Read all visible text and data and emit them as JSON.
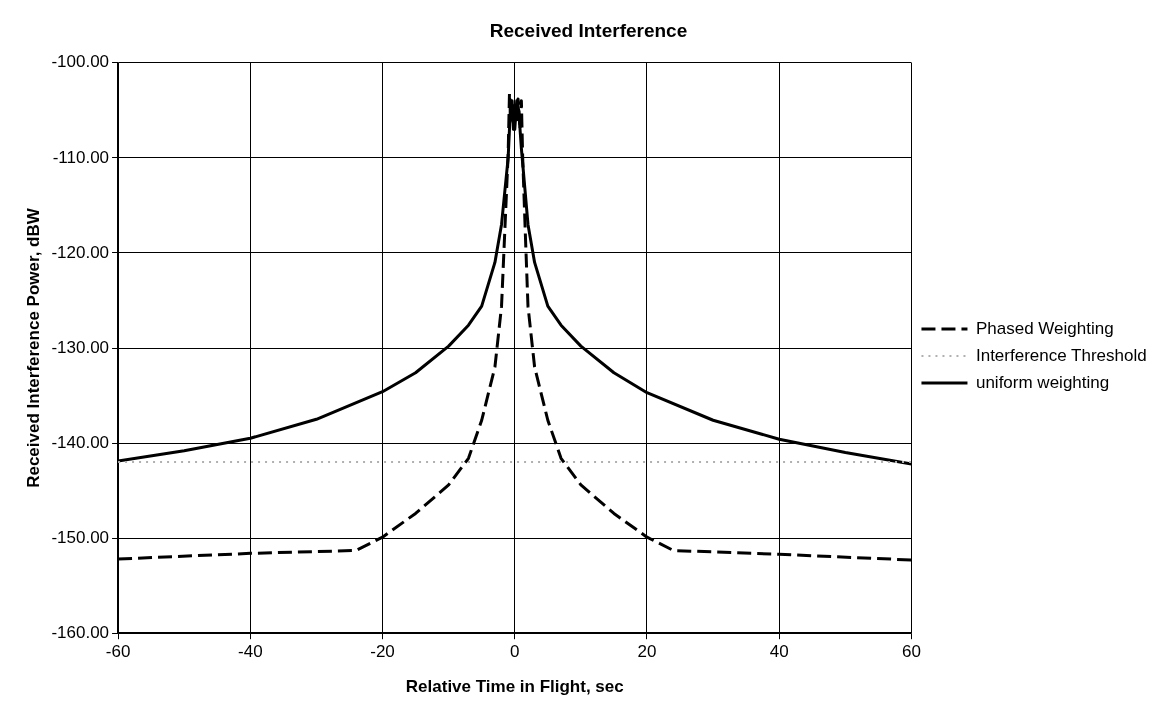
{
  "chart_data": {
    "type": "line",
    "title": "Received Interference",
    "xlabel": "Relative Time in Flight, sec",
    "ylabel": "Received Interference Power, dBW",
    "xlim": [
      -60,
      60
    ],
    "xticks": [
      -60,
      -40,
      -20,
      0,
      20,
      40,
      60
    ],
    "ylim": [
      -160,
      -100
    ],
    "yticks": [
      {
        "value": -160,
        "label": "-160.00"
      },
      {
        "value": -150,
        "label": "-150.00"
      },
      {
        "value": -140,
        "label": "-140.00"
      },
      {
        "value": -130,
        "label": "-130.00"
      },
      {
        "value": -120,
        "label": "-120.00"
      },
      {
        "value": -110,
        "label": "-110.00"
      },
      {
        "value": -100,
        "label": "-100.00"
      }
    ],
    "grid": true,
    "legend": "right",
    "marker": "none",
    "series": [
      {
        "name": "Phased Weighting",
        "color": "#000000",
        "line_style": "dashed",
        "x": [
          -60,
          -40,
          -24,
          -20,
          -15,
          -10,
          -7,
          -5,
          -3,
          -2,
          -1.5,
          -1,
          -0.8,
          -0.6,
          -0.4,
          -0.2,
          0,
          0.3,
          0.5,
          0.8,
          1,
          1.2,
          1.6,
          2,
          3,
          5,
          7,
          10,
          15,
          20,
          24,
          40,
          60
        ],
        "values": [
          -152.2,
          -151.6,
          -151.3,
          -149.9,
          -147.4,
          -144.4,
          -141.6,
          -137.6,
          -132,
          -125.6,
          -117.6,
          -109.6,
          -103.2,
          -106,
          -104,
          -107,
          -104.5,
          -106,
          -103.8,
          -107,
          -104,
          -110,
          -118,
          -125.6,
          -132,
          -137.6,
          -141.6,
          -144.4,
          -147.4,
          -149.9,
          -151.3,
          -151.7,
          -152.3
        ]
      },
      {
        "name": "Interference Threshold",
        "color": "#b0b0b0",
        "line_style": "dotted",
        "x": [
          -60,
          60
        ],
        "values": [
          -142,
          -142
        ]
      },
      {
        "name": "uniform weighting",
        "color": "#000000",
        "line_style": "solid",
        "x": [
          -60,
          -50,
          -40,
          -30,
          -20,
          -15,
          -10,
          -7,
          -5,
          -3,
          -2,
          -1,
          -0.6,
          -0.3,
          0,
          0.3,
          0.6,
          1,
          2,
          3,
          5,
          7,
          10,
          15,
          20,
          30,
          40,
          50,
          60
        ],
        "values": [
          -141.9,
          -140.8,
          -139.5,
          -137.5,
          -134.6,
          -132.6,
          -129.8,
          -127.6,
          -125.6,
          -121,
          -117,
          -110,
          -104,
          -106,
          -107,
          -104,
          -105,
          -109,
          -117,
          -121,
          -125.6,
          -127.6,
          -129.8,
          -132.6,
          -134.7,
          -137.6,
          -139.6,
          -141,
          -142.2
        ]
      }
    ]
  }
}
